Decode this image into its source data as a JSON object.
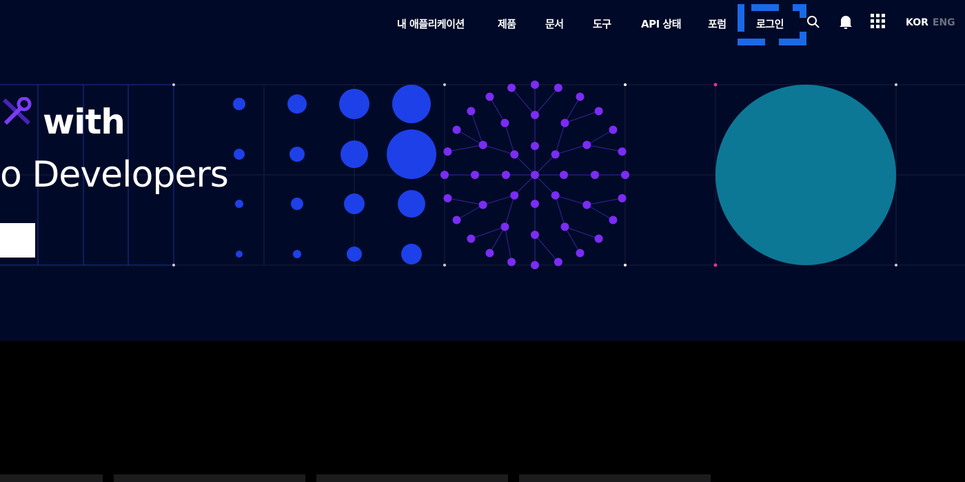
{
  "nav": {
    "items": [
      "내 애플리케이션",
      "제품",
      "문서",
      "도구",
      "API 상태",
      "포럼"
    ],
    "login": "로그인",
    "lang_active": "KOR",
    "lang_inactive": "ENG"
  },
  "icons": [
    "search-icon",
    "bell-icon",
    "apps-grid-icon",
    "tools-icon"
  ],
  "hero": {
    "line1": "with",
    "line2": "o Developers"
  },
  "colors": {
    "background": "#000a28",
    "accent": "#1a6ae8",
    "dots": "#1e40e8",
    "network": "#7b2cf5",
    "circle": "#0c7896"
  }
}
